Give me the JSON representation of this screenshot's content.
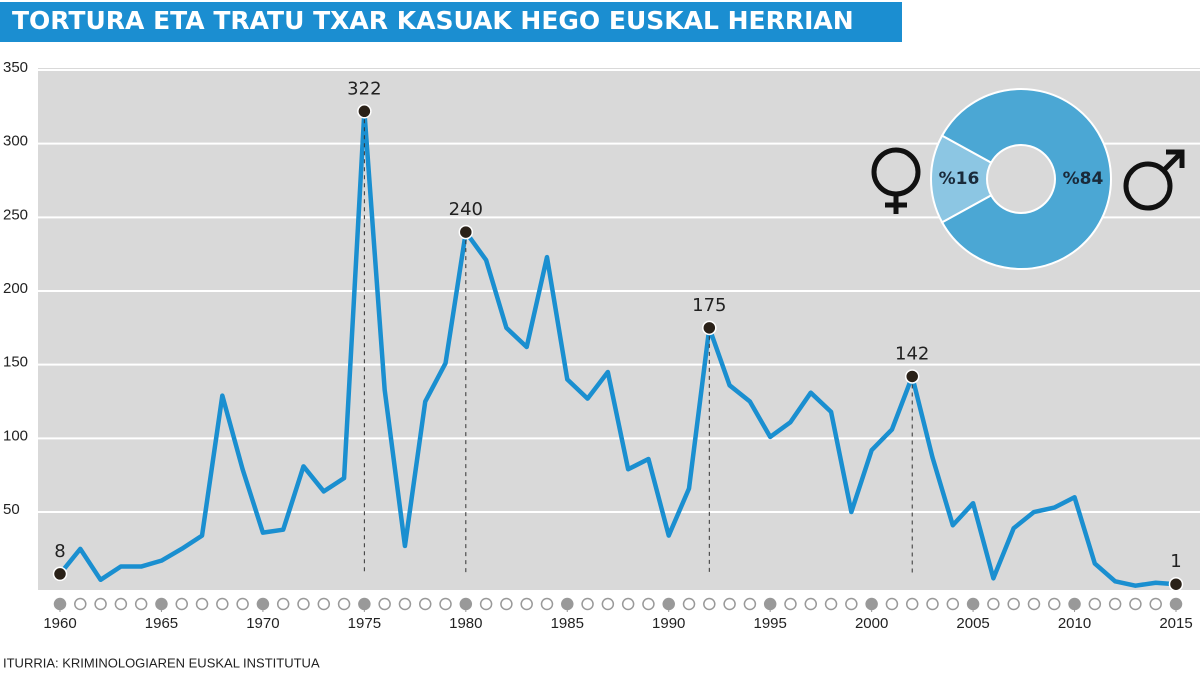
{
  "chart_data": [
    {
      "type": "line",
      "title": "TORTURA ETA TRATU TXAR KASUAK HEGO EUSKAL HERRIAN",
      "source": "ITURRIA: KRIMINOLOGIAREN EUSKAL INSTITUTUA",
      "x": [
        1960,
        1961,
        1962,
        1963,
        1964,
        1965,
        1966,
        1967,
        1968,
        1969,
        1970,
        1971,
        1972,
        1973,
        1974,
        1975,
        1976,
        1977,
        1978,
        1979,
        1980,
        1981,
        1982,
        1983,
        1984,
        1985,
        1986,
        1987,
        1988,
        1989,
        1990,
        1991,
        1992,
        1993,
        1994,
        1995,
        1996,
        1997,
        1998,
        1999,
        2000,
        2001,
        2002,
        2003,
        2004,
        2005,
        2006,
        2007,
        2008,
        2009,
        2010,
        2011,
        2012,
        2013,
        2014,
        2015
      ],
      "values": [
        8,
        25,
        4,
        13,
        13,
        17,
        25,
        34,
        129,
        79,
        36,
        38,
        81,
        64,
        73,
        322,
        133,
        27,
        125,
        151,
        240,
        221,
        175,
        162,
        223,
        140,
        127,
        145,
        79,
        86,
        34,
        66,
        175,
        136,
        125,
        101,
        111,
        131,
        118,
        50,
        92,
        106,
        142,
        87,
        41,
        56,
        5,
        39,
        50,
        53,
        60,
        15,
        3,
        0,
        2,
        1
      ],
      "value_labels": [
        "8",
        null,
        null,
        null,
        null,
        null,
        null,
        null,
        null,
        null,
        null,
        null,
        null,
        null,
        null,
        "322",
        null,
        null,
        null,
        null,
        "240",
        null,
        null,
        null,
        null,
        null,
        null,
        null,
        null,
        null,
        null,
        null,
        "175",
        null,
        null,
        null,
        null,
        null,
        null,
        null,
        null,
        null,
        "142",
        null,
        null,
        null,
        null,
        null,
        null,
        null,
        null,
        null,
        null,
        null,
        null,
        "1"
      ],
      "color": "#1a8fd0",
      "xlim": [
        1960,
        2015
      ],
      "xticks": [
        1960,
        1965,
        1970,
        1975,
        1980,
        1985,
        1990,
        1995,
        2000,
        2005,
        2010,
        2015
      ],
      "ylim": [
        0,
        350
      ],
      "yticks": [
        50,
        100,
        150,
        200,
        250,
        300,
        350
      ],
      "grid": true
    },
    {
      "type": "pie",
      "values": [
        16,
        84
      ],
      "value_labels": [
        "%16",
        "%84"
      ],
      "colors": [
        "#8cc6e3",
        "#4ba7d4"
      ]
    }
  ]
}
